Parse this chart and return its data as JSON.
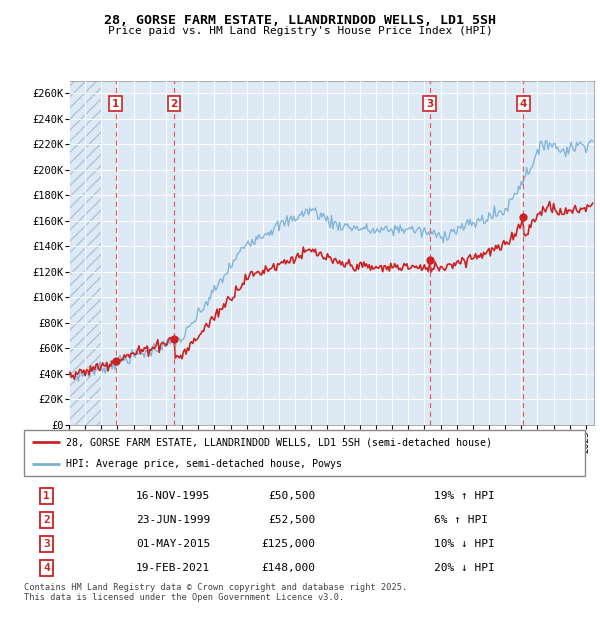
{
  "title": "28, GORSE FARM ESTATE, LLANDRINDOD WELLS, LD1 5SH",
  "subtitle": "Price paid vs. HM Land Registry's House Price Index (HPI)",
  "ylim": [
    0,
    270000
  ],
  "yticks": [
    0,
    20000,
    40000,
    60000,
    80000,
    100000,
    120000,
    140000,
    160000,
    180000,
    200000,
    220000,
    240000,
    260000
  ],
  "ytick_labels": [
    "£0",
    "£20K",
    "£40K",
    "£60K",
    "£80K",
    "£100K",
    "£120K",
    "£140K",
    "£160K",
    "£180K",
    "£200K",
    "£220K",
    "£240K",
    "£260K"
  ],
  "hpi_color": "#7bafd4",
  "price_color": "#cc2222",
  "sale_marker_color": "#cc2222",
  "vline_color": "#e06060",
  "shade_color": "#ddeaf5",
  "hatch_color": "#c8d8e8",
  "grid_color": "#cccccc",
  "legend_line1": "28, GORSE FARM ESTATE, LLANDRINDOD WELLS, LD1 5SH (semi-detached house)",
  "legend_line2": "HPI: Average price, semi-detached house, Powys",
  "footnote": "Contains HM Land Registry data © Crown copyright and database right 2025.\nThis data is licensed under the Open Government Licence v3.0.",
  "xmin": 1993.0,
  "xmax": 2025.5,
  "sales": [
    {
      "num": 1,
      "date_x": 1995.88,
      "price": 50500
    },
    {
      "num": 2,
      "date_x": 1999.5,
      "price": 52500
    },
    {
      "num": 3,
      "date_x": 2015.33,
      "price": 125000
    },
    {
      "num": 4,
      "date_x": 2021.12,
      "price": 148000
    }
  ],
  "table_rows": [
    [
      "1",
      "16-NOV-1995",
      "£50,500",
      "19% ↑ HPI"
    ],
    [
      "2",
      "23-JUN-1999",
      "£52,500",
      "6% ↑ HPI"
    ],
    [
      "3",
      "01-MAY-2015",
      "£125,000",
      "10% ↓ HPI"
    ],
    [
      "4",
      "19-FEB-2021",
      "£148,000",
      "20% ↓ HPI"
    ]
  ]
}
